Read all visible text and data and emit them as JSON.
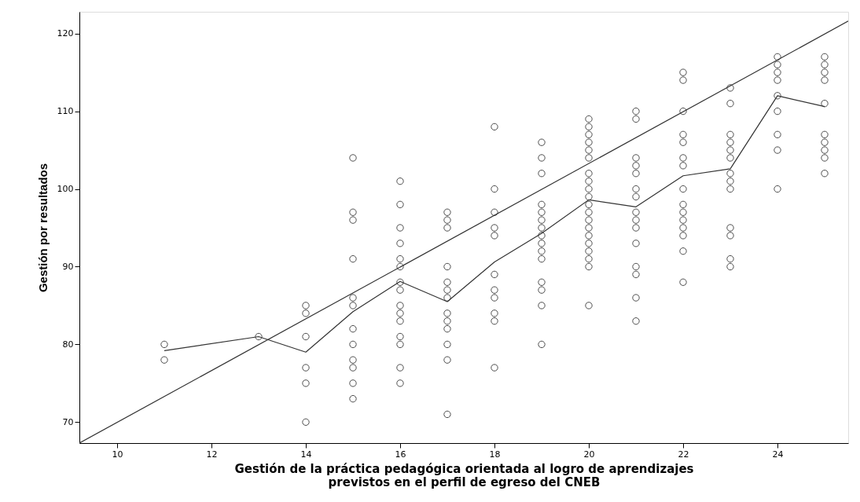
{
  "chart_data": {
    "type": "scatter",
    "xlabel": "Gestión de la práctica pedagógica orientada al logro de aprendizajes previstos en el perfil de egreso del CNEB",
    "ylabel": "Gestión por resultados",
    "xlim": [
      9.2,
      25.5
    ],
    "ylim": [
      67.3,
      122.8
    ],
    "xticks": [
      10,
      12,
      14,
      16,
      18,
      20,
      22,
      24
    ],
    "yticks": [
      70,
      80,
      90,
      100,
      110,
      120
    ],
    "grid": false,
    "marker": "circle",
    "series": [
      {
        "color": "#000000",
        "x": [
          11,
          11,
          13,
          14,
          14,
          14,
          14,
          14,
          14,
          15,
          15,
          15,
          15,
          15,
          15,
          15,
          15,
          15,
          15,
          15,
          15,
          16,
          16,
          16,
          16,
          16,
          16,
          16,
          16,
          16,
          16,
          16,
          16,
          16,
          16,
          16,
          17,
          17,
          17,
          17,
          17,
          17,
          17,
          17,
          17,
          17,
          17,
          17,
          17,
          18,
          18,
          18,
          18,
          18,
          18,
          18,
          18,
          18,
          18,
          18,
          19,
          19,
          19,
          19,
          19,
          19,
          19,
          19,
          19,
          19,
          19,
          19,
          19,
          19,
          19,
          20,
          20,
          20,
          20,
          20,
          20,
          20,
          20,
          20,
          20,
          20,
          20,
          20,
          20,
          20,
          20,
          20,
          20,
          20,
          20,
          21,
          21,
          21,
          21,
          21,
          21,
          21,
          21,
          21,
          21,
          21,
          21,
          21,
          21,
          21,
          22,
          22,
          22,
          22,
          22,
          22,
          22,
          22,
          22,
          22,
          22,
          22,
          22,
          22,
          22,
          23,
          23,
          23,
          23,
          23,
          23,
          23,
          23,
          23,
          23,
          23,
          23,
          23,
          24,
          24,
          24,
          24,
          24,
          24,
          24,
          24,
          24,
          25,
          25,
          25,
          25,
          25,
          25,
          25,
          25,
          25,
          25
        ],
        "values": [
          80,
          78,
          81,
          85,
          84,
          81,
          77,
          75,
          70,
          104,
          97,
          96,
          91,
          86,
          85,
          82,
          80,
          78,
          77,
          75,
          73,
          101,
          98,
          95,
          93,
          91,
          90,
          88,
          87,
          85,
          84,
          83,
          81,
          80,
          77,
          75,
          97,
          96,
          95,
          90,
          88,
          87,
          86,
          84,
          83,
          82,
          80,
          78,
          71,
          108,
          100,
          97,
          95,
          94,
          89,
          87,
          86,
          84,
          83,
          77,
          106,
          104,
          102,
          98,
          97,
          96,
          95,
          94,
          93,
          92,
          91,
          88,
          87,
          85,
          80,
          109,
          108,
          107,
          106,
          105,
          104,
          102,
          101,
          100,
          99,
          98,
          97,
          96,
          95,
          94,
          93,
          92,
          91,
          90,
          85,
          110,
          109,
          104,
          103,
          102,
          100,
          99,
          97,
          96,
          95,
          93,
          90,
          89,
          86,
          83,
          115,
          114,
          110,
          107,
          106,
          104,
          103,
          100,
          98,
          97,
          96,
          95,
          94,
          92,
          88,
          113,
          111,
          107,
          106,
          105,
          104,
          102,
          101,
          100,
          95,
          94,
          91,
          90,
          117,
          116,
          115,
          114,
          112,
          110,
          107,
          105,
          100,
          117,
          116,
          115,
          114,
          111,
          107,
          106,
          105,
          104,
          102
        ]
      },
      {
        "type": "line",
        "color": "#333333",
        "marker": "none",
        "x": [
          11,
          13,
          14,
          15,
          16,
          17,
          18,
          19,
          20,
          21,
          22,
          23,
          24,
          25
        ],
        "values": [
          79.2,
          81,
          79,
          84.2,
          88.1,
          85.5,
          90.6,
          94.3,
          98.6,
          97.7,
          101.7,
          102.6,
          112,
          110.6
        ]
      },
      {
        "type": "line",
        "color": "#333333",
        "marker": "none",
        "x": [
          9.2,
          25.5
        ],
        "values": [
          67.3,
          121.6
        ]
      }
    ]
  }
}
